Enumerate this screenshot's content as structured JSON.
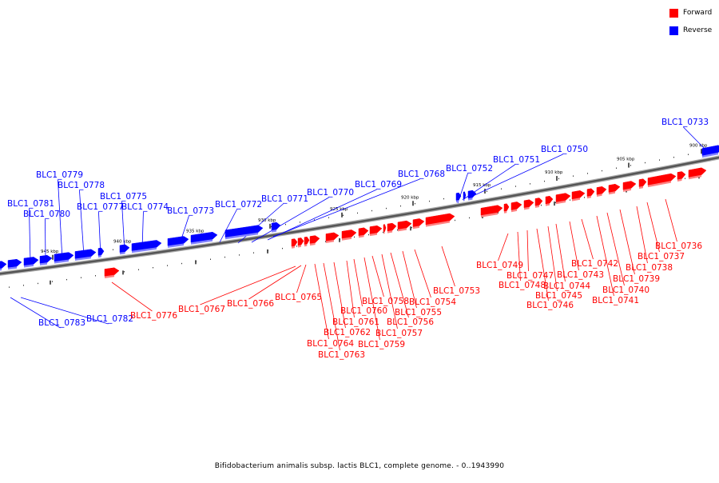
{
  "legend": {
    "forward_label": "Forward",
    "reverse_label": "Reverse",
    "forward_color": "#ff0000",
    "reverse_color": "#0000ff"
  },
  "caption": "Bifidobacterium animalis subsp. lactis BLC1, complete genome. - 0..1943990",
  "axis_ticks": [
    "900 kbp",
    "905 kbp",
    "910 kbp",
    "915 kbp",
    "920 kbp",
    "925 kbp",
    "930 kbp",
    "935 kbp",
    "940 kbp",
    "945 kbp"
  ],
  "genes_reverse": [
    "BLC1_0733",
    "BLC1_0750",
    "BLC1_0751",
    "BLC1_0752",
    "BLC1_0768",
    "BLC1_0769",
    "BLC1_0770",
    "BLC1_0771",
    "BLC1_0772",
    "BLC1_0773",
    "BLC1_0774",
    "BLC1_0775",
    "BLC1_0777",
    "BLC1_0778",
    "BLC1_0779",
    "BLC1_0780",
    "BLC1_0781",
    "BLC1_0782",
    "BLC1_0783"
  ],
  "genes_forward": [
    "BLC1_0736",
    "BLC1_0737",
    "BLC1_0738",
    "BLC1_0739",
    "BLC1_0740",
    "BLC1_0741",
    "BLC1_0742",
    "BLC1_0743",
    "BLC1_0744",
    "BLC1_0745",
    "BLC1_0746",
    "BLC1_0747",
    "BLC1_0748",
    "BLC1_0749",
    "BLC1_0753",
    "BLC1_0754",
    "BLC1_0755",
    "BLC1_0756",
    "BLC1_0757",
    "BLC1_0758",
    "BLC1_0759",
    "BLC1_0760",
    "BLC1_0761",
    "BLC1_0762",
    "BLC1_0763",
    "BLC1_0764",
    "BLC1_0765",
    "BLC1_0766",
    "BLC1_0767",
    "BLC1_0776"
  ]
}
